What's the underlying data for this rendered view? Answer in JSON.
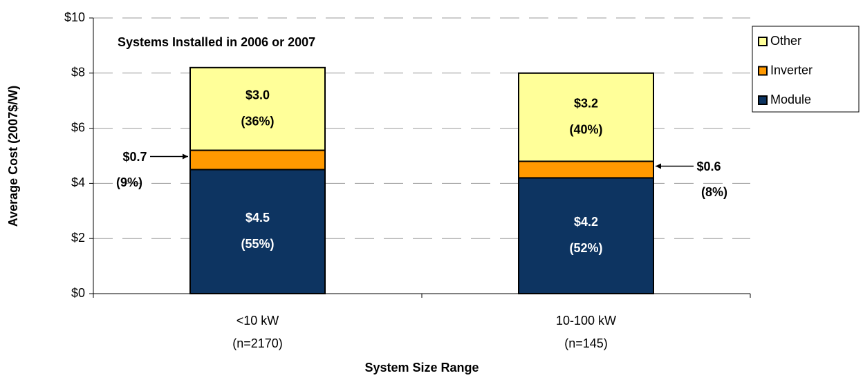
{
  "chart_data": {
    "type": "stacked_bar",
    "annotation": "Systems Installed in 2006 or 2007",
    "x_label": "System Size Range",
    "y_label": "Average Cost (2007$/W)",
    "categories": [
      [
        "<10 kW",
        "(n=2170)"
      ],
      [
        "10-100 kW",
        "(n=145)"
      ]
    ],
    "series": [
      {
        "name": "Module",
        "color": "#0d3461",
        "values": [
          4.5,
          4.2
        ],
        "value_labels": [
          "$4.5",
          "$4.2"
        ],
        "percent_labels": [
          "(55%)",
          "(52%)"
        ]
      },
      {
        "name": "Inverter",
        "color": "#ff9900",
        "values": [
          0.7,
          0.6
        ],
        "value_labels": [
          "$0.7",
          "$0.6"
        ],
        "percent_labels": [
          "(9%)",
          "(8%)"
        ]
      },
      {
        "name": "Other",
        "color": "#ffff99",
        "values": [
          3.0,
          3.2
        ],
        "value_labels": [
          "$3.0",
          "$3.2"
        ],
        "percent_labels": [
          "(36%)",
          "(40%)"
        ]
      }
    ],
    "ylim": [
      0,
      10
    ],
    "yticks": [
      {
        "value": 0,
        "label": "$0"
      },
      {
        "value": 2,
        "label": "$2"
      },
      {
        "value": 4,
        "label": "$4"
      },
      {
        "value": 6,
        "label": "$6"
      },
      {
        "value": 8,
        "label": "$8"
      },
      {
        "value": 10,
        "label": "$10"
      }
    ],
    "grid": true,
    "legend": "right"
  }
}
